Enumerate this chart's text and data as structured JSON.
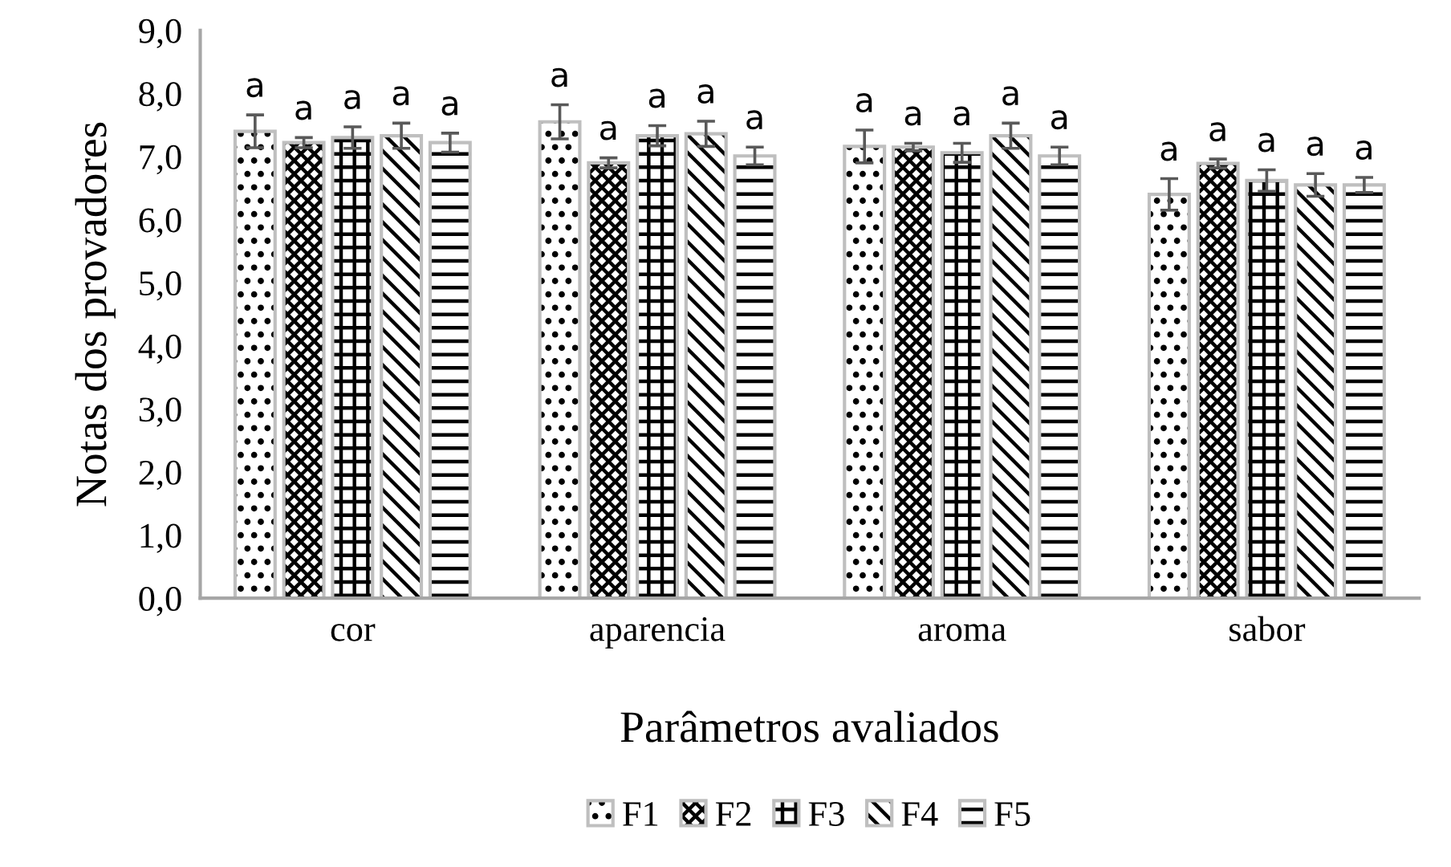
{
  "chart_data": {
    "type": "bar",
    "xlabel": "Parâmetros avaliados",
    "ylabel": "Notas dos provadores",
    "categories": [
      "cor",
      "aparencia",
      "aroma",
      "sabor"
    ],
    "series": [
      {
        "name": "F1",
        "color": "#bfbfbf",
        "values": [
          7.4,
          7.55,
          7.16,
          6.4
        ],
        "errors": [
          0.26,
          0.27,
          0.26,
          0.25
        ],
        "value_labels": [
          "a",
          "a",
          "a",
          "a"
        ]
      },
      {
        "name": "F2",
        "color": "#bfbfbf",
        "values": [
          7.22,
          6.9,
          7.15,
          6.89
        ],
        "errors": [
          0.08,
          0.08,
          0.06,
          0.07
        ],
        "value_labels": [
          "a",
          "a",
          "a",
          "a"
        ]
      },
      {
        "name": "F3",
        "color": "#bfbfbf",
        "values": [
          7.3,
          7.33,
          7.06,
          6.62
        ],
        "errors": [
          0.17,
          0.16,
          0.15,
          0.17
        ],
        "value_labels": [
          "a",
          "a",
          "a",
          "a"
        ]
      },
      {
        "name": "F4",
        "color": "#bfbfbf",
        "values": [
          7.33,
          7.36,
          7.33,
          6.55
        ],
        "errors": [
          0.2,
          0.2,
          0.2,
          0.18
        ],
        "value_labels": [
          "a",
          "a",
          "a",
          "a"
        ]
      },
      {
        "name": "F5",
        "color": "#bfbfbf",
        "values": [
          7.22,
          7.01,
          7.01,
          6.55
        ],
        "errors": [
          0.15,
          0.14,
          0.14,
          0.12
        ],
        "value_labels": [
          "a",
          "a",
          "a",
          "a"
        ]
      }
    ],
    "ylim": [
      0,
      9
    ],
    "yticks": [
      {
        "value": 0,
        "label": "0,0"
      },
      {
        "value": 1,
        "label": "1,0"
      },
      {
        "value": 2,
        "label": "2,0"
      },
      {
        "value": 3,
        "label": "3,0"
      },
      {
        "value": 4,
        "label": "4,0"
      },
      {
        "value": 5,
        "label": "5,0"
      },
      {
        "value": 6,
        "label": "6,0"
      },
      {
        "value": 7,
        "label": "7,0"
      },
      {
        "value": 8,
        "label": "8,0"
      },
      {
        "value": 9,
        "label": "9,0"
      }
    ],
    "grid": false,
    "legend": "bottom"
  }
}
